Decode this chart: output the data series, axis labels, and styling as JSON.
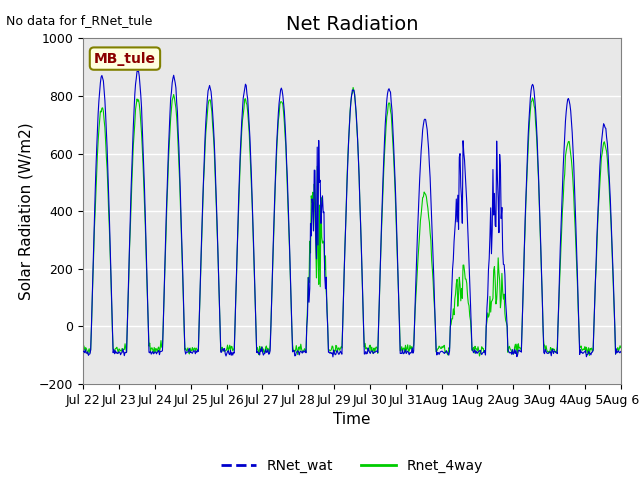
{
  "title": "Net Radiation",
  "xlabel": "Time",
  "ylabel": "Solar Radiation (W/m2)",
  "ylim": [
    -200,
    1000
  ],
  "annotation_text": "No data for f_RNet_tule",
  "legend_label1": "RNet_wat",
  "legend_label2": "Rnet_4way",
  "legend_box_label": "MB_tule",
  "line_color1": "#0000cc",
  "line_color2": "#00cc00",
  "bg_color": "#e8e8e8",
  "num_days": 15,
  "x_tick_labels": [
    "Jul 22",
    "Jul 23",
    "Jul 24",
    "Jul 25",
    "Jul 26",
    "Jul 27",
    "Jul 28",
    "Jul 29",
    "Jul 30",
    "Jul 31",
    "Aug 1",
    "Aug 2",
    "Aug 3",
    "Aug 4",
    "Aug 5",
    "Aug 6"
  ],
  "yticks": [
    -200,
    0,
    200,
    400,
    600,
    800,
    1000
  ],
  "title_fontsize": 14,
  "axis_fontsize": 11,
  "tick_fontsize": 9
}
